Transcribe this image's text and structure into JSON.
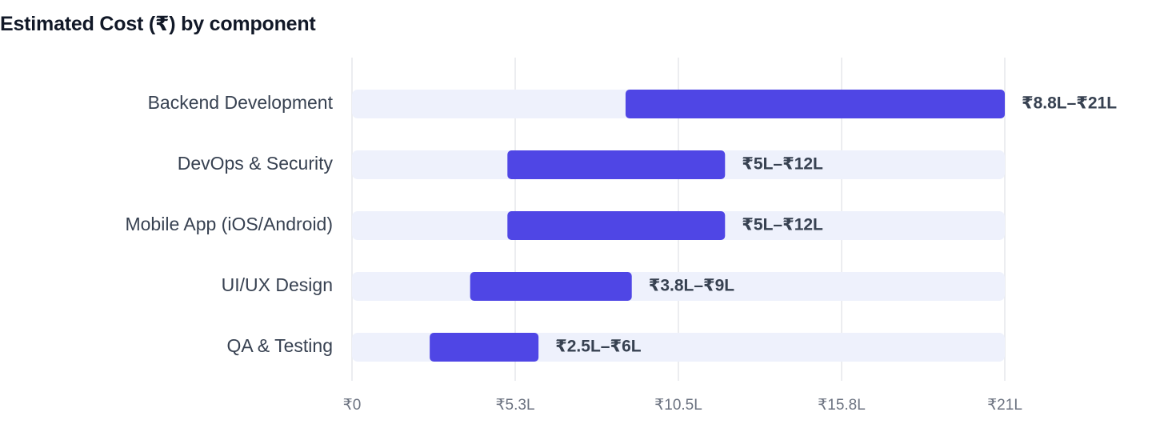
{
  "chart_data": {
    "type": "bar",
    "orientation": "horizontal",
    "title": "Estimated Cost (₹) by component",
    "categories": [
      "Backend Development",
      "DevOps & Security",
      "Mobile App (iOS/Android)",
      "UI/UX Design",
      "QA & Testing"
    ],
    "ranges": [
      {
        "low": 8.8,
        "high": 21
      },
      {
        "low": 5,
        "high": 12
      },
      {
        "low": 5,
        "high": 12
      },
      {
        "low": 3.8,
        "high": 9
      },
      {
        "low": 2.5,
        "high": 6
      }
    ],
    "value_labels": [
      "₹8.8L–₹21L",
      "₹5L–₹12L",
      "₹5L–₹12L",
      "₹3.8L–₹9L",
      "₹2.5L–₹6L"
    ],
    "x_unit": "₹ lakh",
    "xlim": [
      0,
      21
    ],
    "xticks": [
      0,
      5.25,
      10.5,
      15.75,
      21
    ],
    "xtick_labels": [
      "₹0",
      "₹5.3L",
      "₹10.5L",
      "₹15.8L",
      "₹21L"
    ],
    "grid": true,
    "legend": "none",
    "colors": {
      "bar": "#4f46e5",
      "track": "#eef1fc",
      "grid": "#e5e7eb"
    }
  }
}
